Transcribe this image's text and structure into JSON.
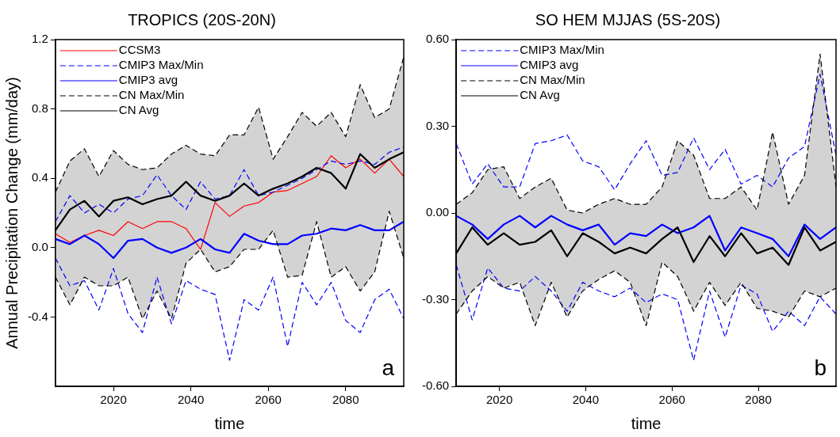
{
  "chart_data": [
    {
      "type": "line",
      "title": "TROPICS (20S-20N)",
      "xlabel": "time",
      "ylabel": "Annual Precipitation Change (mm/day)",
      "annotations": [
        "a"
      ],
      "x": [
        2005,
        2008.75,
        2012.5,
        2016.25,
        2020,
        2023.75,
        2027.5,
        2031.25,
        2035,
        2038.75,
        2042.5,
        2046.25,
        2050,
        2053.75,
        2057.5,
        2061.25,
        2065,
        2068.75,
        2072.5,
        2076.25,
        2080,
        2083.75,
        2087.5,
        2091.25,
        2095
      ],
      "xlim": [
        2005,
        2095
      ],
      "xticks": [
        2020,
        2040,
        2060,
        2080
      ],
      "ylim": [
        -0.8,
        1.2
      ],
      "yticks": [
        {
          "value": 1.2,
          "label": "1.2"
        },
        {
          "value": 0.8,
          "label": "0.8"
        },
        {
          "value": 0.4,
          "label": "0.4"
        },
        {
          "value": 0,
          "label": "0.0"
        },
        {
          "value": -0.4,
          "label": "-0.4"
        }
      ],
      "grid": false,
      "legend": "top left",
      "marker": "none",
      "series": [
        {
          "name": "CCSM3",
          "color": "#ff0000",
          "line_style": "solid",
          "values": [
            0.08,
            0.03,
            0.07,
            0.1,
            0.07,
            0.15,
            0.11,
            0.15,
            0.15,
            0.11,
            -0.01,
            0.26,
            0.18,
            0.24,
            0.26,
            0.32,
            0.33,
            0.37,
            0.41,
            0.53,
            0.46,
            0.51,
            0.43,
            0.51,
            0.41
          ]
        },
        {
          "name": "CMIP3 Max/Min",
          "color": "#0000ff",
          "line_style": "dashed",
          "values": [
            0.15,
            0.3,
            0.2,
            0.25,
            0.2,
            0.28,
            0.3,
            0.42,
            0.3,
            0.22,
            0.38,
            0.28,
            0.3,
            0.45,
            0.3,
            0.32,
            0.36,
            0.4,
            0.45,
            0.5,
            0.48,
            0.5,
            0.48,
            0.55,
            0.58
          ]
        },
        {
          "color": "#0000ff",
          "line_style": "dashed",
          "values": [
            -0.06,
            -0.22,
            -0.19,
            -0.36,
            -0.12,
            -0.38,
            -0.49,
            -0.17,
            -0.44,
            -0.19,
            -0.24,
            -0.27,
            -0.65,
            -0.3,
            -0.36,
            -0.17,
            -0.57,
            -0.2,
            -0.33,
            -0.2,
            -0.42,
            -0.49,
            -0.3,
            -0.24,
            -0.41
          ]
        },
        {
          "name": "CMIP3 avg",
          "color": "#0000ff",
          "line_style": "solid",
          "values": [
            0.05,
            0.02,
            0.07,
            0.02,
            -0.06,
            0.04,
            0.05,
            0,
            -0.03,
            0,
            0.05,
            -0.01,
            -0.03,
            0.08,
            0.04,
            0.02,
            0.02,
            0.07,
            0.08,
            0.11,
            0.1,
            0.13,
            0.1,
            0.1,
            0.15
          ]
        },
        {
          "name": "CN Max/Min",
          "color": "#000000",
          "line_style": "dashed",
          "values": [
            0.32,
            0.5,
            0.57,
            0.41,
            0.56,
            0.48,
            0.45,
            0.46,
            0.54,
            0.59,
            0.54,
            0.53,
            0.65,
            0.65,
            0.81,
            0.51,
            0.64,
            0.78,
            0.7,
            0.78,
            0.64,
            0.94,
            0.75,
            0.8,
            1.1
          ]
        },
        {
          "color": "#000000",
          "line_style": "dashed",
          "values": [
            -0.17,
            -0.33,
            -0.17,
            -0.22,
            -0.22,
            -0.17,
            -0.41,
            -0.25,
            -0.41,
            -0.09,
            -0.01,
            -0.14,
            -0.11,
            -0.01,
            -0.01,
            0.1,
            -0.17,
            -0.16,
            0.15,
            -0.17,
            -0.11,
            -0.25,
            -0.14,
            0.21,
            -0.06
          ]
        },
        {
          "name": "CN Avg",
          "color": "#000000",
          "line_style": "solid",
          "values": [
            0.1,
            0.22,
            0.27,
            0.18,
            0.27,
            0.29,
            0.25,
            0.28,
            0.3,
            0.38,
            0.3,
            0.27,
            0.3,
            0.37,
            0.3,
            0.34,
            0.37,
            0.41,
            0.46,
            0.43,
            0.34,
            0.54,
            0.46,
            0.51,
            0.55
          ],
          "upper": [
            0.32,
            0.5,
            0.57,
            0.41,
            0.56,
            0.48,
            0.45,
            0.46,
            0.54,
            0.59,
            0.54,
            0.53,
            0.65,
            0.65,
            0.81,
            0.51,
            0.64,
            0.78,
            0.7,
            0.78,
            0.64,
            0.94,
            0.75,
            0.8,
            1.1
          ],
          "lower": [
            -0.17,
            -0.33,
            -0.17,
            -0.22,
            -0.22,
            -0.17,
            -0.41,
            -0.25,
            -0.41,
            -0.09,
            -0.01,
            -0.14,
            -0.11,
            -0.01,
            -0.01,
            0.1,
            -0.17,
            -0.16,
            0.15,
            -0.17,
            -0.11,
            -0.25,
            -0.14,
            0.21,
            -0.06
          ]
        }
      ]
    },
    {
      "type": "line",
      "title": "SO HEM MJJAS (5S-20S)",
      "xlabel": "time",
      "annotations": [
        "b"
      ],
      "x": [
        2010,
        2013.7,
        2017.3,
        2021,
        2024.7,
        2028.3,
        2032,
        2035.7,
        2039.3,
        2043,
        2046.7,
        2050.3,
        2054,
        2057.7,
        2061.3,
        2065,
        2068.7,
        2072.3,
        2076,
        2079.7,
        2083.3,
        2087,
        2090.7,
        2094.3,
        2098
      ],
      "xlim": [
        2010,
        2098
      ],
      "xticks": [
        2020,
        2040,
        2060,
        2080
      ],
      "ylim": [
        -0.6,
        0.6
      ],
      "yticks": [
        {
          "value": 0.6,
          "label": "0.60"
        },
        {
          "value": 0.3,
          "label": "0.30"
        },
        {
          "value": 0,
          "label": "0.00"
        },
        {
          "value": -0.3,
          "label": "-0.30"
        },
        {
          "value": -0.6,
          "label": "-0.60"
        }
      ],
      "grid": false,
      "legend": "top left",
      "marker": "none",
      "series": [
        {
          "name": "CMIP3 Max/Min",
          "color": "#0000ff",
          "line_style": "dashed",
          "values": [
            0.24,
            0.1,
            0.17,
            0.09,
            0.09,
            0.24,
            0.25,
            0.27,
            0.18,
            0.16,
            0.08,
            0.17,
            0.25,
            0.13,
            0.14,
            0.26,
            0.15,
            0.22,
            0.1,
            0.13,
            0.09,
            0.19,
            0.23,
            0.48,
            0.2
          ]
        },
        {
          "color": "#0000ff",
          "line_style": "dashed",
          "values": [
            -0.18,
            -0.37,
            -0.19,
            -0.26,
            -0.27,
            -0.22,
            -0.27,
            -0.34,
            -0.24,
            -0.27,
            -0.29,
            -0.26,
            -0.31,
            -0.28,
            -0.3,
            -0.51,
            -0.27,
            -0.43,
            -0.25,
            -0.28,
            -0.41,
            -0.34,
            -0.39,
            -0.29,
            -0.35
          ]
        },
        {
          "name": "CMIP3 avg",
          "color": "#0000ff",
          "line_style": "solid",
          "values": [
            -0.01,
            -0.04,
            -0.09,
            -0.04,
            -0.01,
            -0.05,
            -0.01,
            -0.04,
            -0.06,
            -0.04,
            -0.11,
            -0.07,
            -0.08,
            -0.04,
            -0.07,
            -0.05,
            -0.01,
            -0.13,
            -0.05,
            -0.07,
            -0.09,
            -0.15,
            -0.04,
            -0.09,
            -0.05
          ]
        },
        {
          "name": "CN Max/Min",
          "color": "#000000",
          "line_style": "dashed",
          "values": [
            0.03,
            0.07,
            0.15,
            0.16,
            0.05,
            0.09,
            0.12,
            0.01,
            0,
            0.03,
            0.05,
            0.03,
            0.03,
            0.09,
            0.25,
            0.2,
            0.05,
            0.05,
            0.09,
            0.01,
            0.28,
            0.03,
            0.13,
            0.55,
            0.09
          ]
        },
        {
          "color": "#000000",
          "line_style": "dashed",
          "values": [
            -0.35,
            -0.27,
            -0.22,
            -0.26,
            -0.24,
            -0.39,
            -0.24,
            -0.36,
            -0.27,
            -0.23,
            -0.2,
            -0.24,
            -0.39,
            -0.17,
            -0.22,
            -0.34,
            -0.24,
            -0.32,
            -0.24,
            -0.33,
            -0.34,
            -0.36,
            -0.27,
            -0.29,
            -0.26
          ]
        },
        {
          "name": "CN Avg",
          "color": "#000000",
          "line_style": "solid",
          "values": [
            -0.14,
            -0.05,
            -0.11,
            -0.07,
            -0.11,
            -0.1,
            -0.06,
            -0.15,
            -0.07,
            -0.1,
            -0.14,
            -0.12,
            -0.14,
            -0.09,
            -0.05,
            -0.17,
            -0.08,
            -0.15,
            -0.07,
            -0.14,
            -0.12,
            -0.18,
            -0.05,
            -0.13,
            -0.1
          ],
          "upper": [
            0.03,
            0.07,
            0.15,
            0.16,
            0.05,
            0.09,
            0.12,
            0.01,
            0,
            0.03,
            0.05,
            0.03,
            0.03,
            0.09,
            0.25,
            0.2,
            0.05,
            0.05,
            0.09,
            0.01,
            0.28,
            0.03,
            0.13,
            0.55,
            0.09
          ],
          "lower": [
            -0.35,
            -0.27,
            -0.22,
            -0.26,
            -0.24,
            -0.39,
            -0.24,
            -0.36,
            -0.27,
            -0.23,
            -0.2,
            -0.24,
            -0.39,
            -0.17,
            -0.22,
            -0.34,
            -0.24,
            -0.32,
            -0.24,
            -0.33,
            -0.34,
            -0.36,
            -0.27,
            -0.29,
            -0.26
          ]
        }
      ]
    }
  ]
}
